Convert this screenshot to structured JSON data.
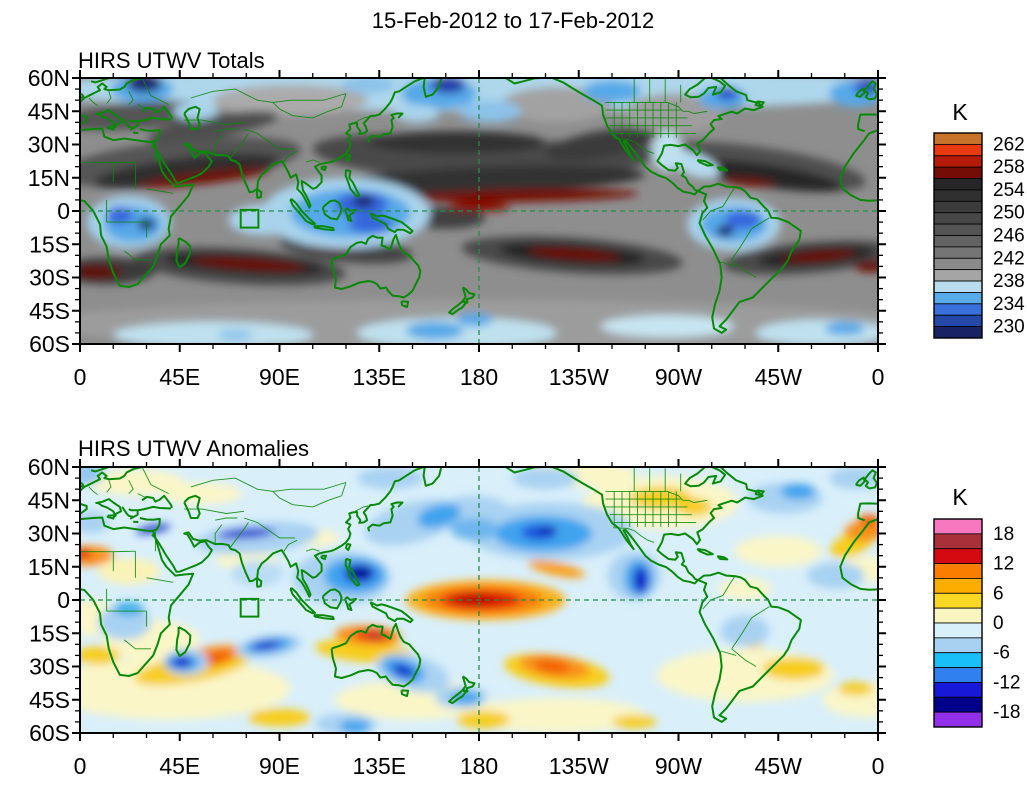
{
  "figure": {
    "title": "15-Feb-2012 to 17-Feb-2012",
    "background_color": "#FFFFFF",
    "coast_color": "#088A08",
    "reference_line_color": "#1F9048"
  },
  "chart_data": [
    {
      "type": "heatmap",
      "subtype": "filled-contour-world-map",
      "title": "HIRS UTWV Totals",
      "unit": "K",
      "projection": {
        "lon_range_deg_east": [
          0,
          360
        ],
        "lat_range": [
          -60,
          60
        ],
        "note": "Pacific-centered, 180 at map center; green coastlines and country/state borders"
      },
      "x_axis": {
        "tick_labels": [
          "0",
          "45E",
          "90E",
          "135E",
          "180",
          "135W",
          "90W",
          "45W",
          "0"
        ],
        "major_tick_deg": 45,
        "minor_tick_deg": 15
      },
      "y_axis": {
        "tick_labels": [
          "60N",
          "45N",
          "30N",
          "15N",
          "0",
          "15S",
          "30S",
          "45S",
          "60S"
        ],
        "major_tick_deg": 15,
        "minor_tick_deg": 5
      },
      "colorbar": {
        "unit": "K",
        "tick_labels": [
          "262",
          "258",
          "254",
          "250",
          "246",
          "242",
          "238",
          "234",
          "230"
        ],
        "value_range": [
          228,
          264
        ],
        "contour_interval": 2,
        "segment_colors_top_to_bottom": [
          "#C8732A",
          "#E83A0E",
          "#B61A08",
          "#740D05",
          "#262626",
          "#303030",
          "#3B3B3B",
          "#474747",
          "#545454",
          "#636363",
          "#757575",
          "#8A8A8A",
          "#A5A5A5",
          "#B8DCEE",
          "#58AAE8",
          "#3A70DC",
          "#2348A8",
          "#1A2266"
        ]
      },
      "reference_lines": {
        "equator_dashed": true,
        "dateline_dashed": true
      },
      "region_marker_box": {
        "lon_east": [
          72.5,
          80.5
        ],
        "lat": [
          -7.5,
          0.5
        ]
      },
      "features": [
        "Dark red ribbons (warm, >=258 K) along subtropical dry zones: Arabia-India ~15N, Pacific ITCZ ~5-8N, south Indian Ocean ~24S, north of Australia ~15S, South Pacific ~19S, South Atlantic ~20S",
        "Broad dark gray bands (244-256 K) across both subtropics",
        "Blue cold/moist regions (<=238 K) over the Maritime Continent, central Africa, Amazonia and northern high latitudes",
        "Light gray and pale blue belt along southern mid-latitudes (45S-60S)"
      ]
    },
    {
      "type": "heatmap",
      "subtype": "filled-contour-world-map",
      "title": "HIRS UTWV Anomalies",
      "unit": "K",
      "projection": {
        "lon_range_deg_east": [
          0,
          360
        ],
        "lat_range": [
          -60,
          60
        ],
        "note": "Pacific-centered, 180 at map center; green coastlines and country/state borders"
      },
      "x_axis": {
        "tick_labels": [
          "0",
          "45E",
          "90E",
          "135E",
          "180",
          "135W",
          "90W",
          "45W",
          "0"
        ],
        "major_tick_deg": 45,
        "minor_tick_deg": 15
      },
      "y_axis": {
        "tick_labels": [
          "60N",
          "45N",
          "30N",
          "15N",
          "0",
          "15S",
          "30S",
          "45S",
          "60S"
        ],
        "major_tick_deg": 15,
        "minor_tick_deg": 5
      },
      "colorbar": {
        "unit": "K",
        "tick_labels": [
          "18",
          "12",
          "6",
          "0",
          "-6",
          "-12",
          "-18"
        ],
        "value_range": [
          -21,
          21
        ],
        "contour_interval": 3,
        "segment_colors_top_to_bottom": [
          "#F878C0",
          "#A93038",
          "#D50A10",
          "#FA7D00",
          "#FCAD00",
          "#F8D822",
          "#F8F5C0",
          "#D8F0FA",
          "#A8D0F0",
          "#18BFF8",
          "#3080F0",
          "#1818D8",
          "#00008B",
          "#9130E8"
        ]
      },
      "reference_lines": {
        "equator_dashed": true,
        "dateline_dashed": true
      },
      "region_marker_box": {
        "lon_east": [
          72.5,
          80.5
        ],
        "lat": [
          -7.5,
          0.5
        ]
      },
      "features": [
        "Strong positive anomaly (+6 to +18 K, red core) centered on the dateline at the equator",
        "Negative anomalies (-6 to -18 K, blue/navy) over the Philippines, the northeast Pacific, off Mexico, south of Madagascar, the central south Indian Ocean and southeast Australia",
        "Orange positive arcs over the south Indian Ocean (~26S), northern Australia, the South Pacific (~30S) and northwest Africa",
        "Pale yellow positive areas over North America and the southern mid-latitudes; pale blue elsewhere"
      ]
    }
  ]
}
